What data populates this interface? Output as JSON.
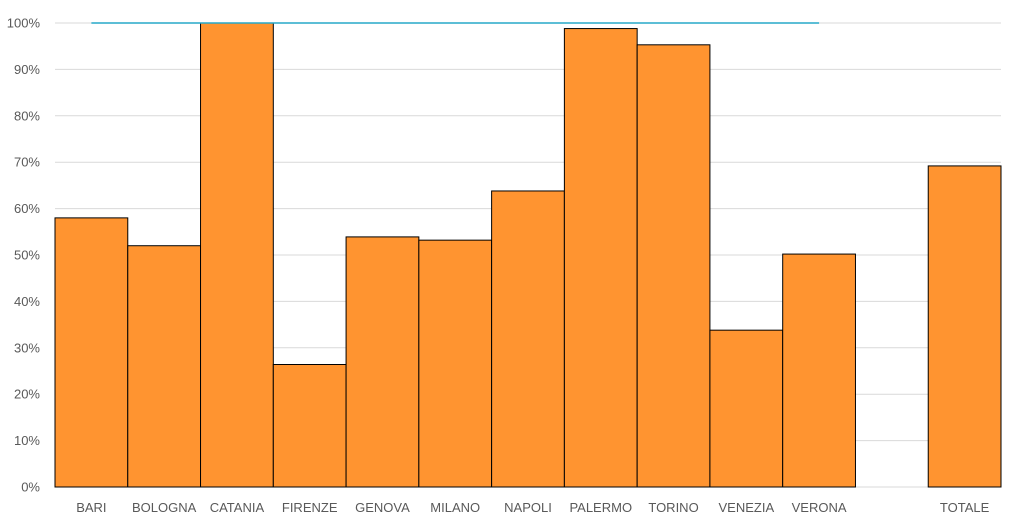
{
  "chart_data": {
    "type": "bar",
    "categories": [
      "BARI",
      "BOLOGNA",
      "CATANIA",
      "FIRENZE",
      "GENOVA",
      "MILANO",
      "NAPOLI",
      "PALERMO",
      "TORINO",
      "VENEZIA",
      "VERONA",
      "",
      "TOTALE"
    ],
    "values": [
      0.58,
      0.52,
      1.0,
      0.264,
      0.539,
      0.532,
      0.638,
      0.988,
      0.953,
      0.338,
      0.502,
      null,
      0.692
    ],
    "target_line": {
      "value": 1.0,
      "from_category": "BARI",
      "to_category": "VERONA",
      "color": "#26a8c8"
    },
    "yticks": [
      "0%",
      "10%",
      "20%",
      "30%",
      "40%",
      "50%",
      "60%",
      "70%",
      "80%",
      "90%",
      "100%"
    ],
    "ylim": [
      0,
      1
    ],
    "grid": true,
    "legend": "none",
    "bar_color": "#ff9430",
    "title": "",
    "xlabel": "",
    "ylabel": ""
  }
}
